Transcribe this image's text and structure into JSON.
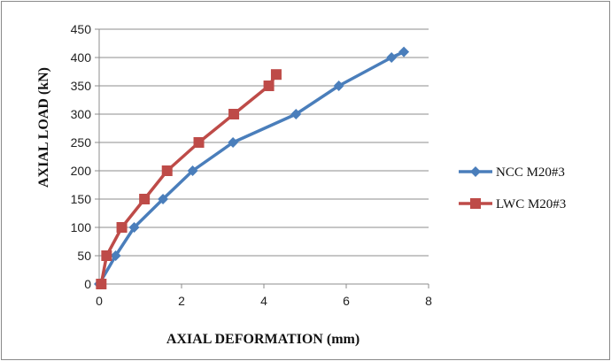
{
  "chart_data": {
    "type": "line",
    "title": "",
    "xlabel": "AXIAL DEFORMATION (mm)",
    "ylabel": "AXIAL LOAD (kN)",
    "xlim": [
      0,
      8
    ],
    "ylim": [
      0,
      450
    ],
    "xticks": [
      0,
      2,
      4,
      6,
      8
    ],
    "yticks": [
      0,
      50,
      100,
      150,
      200,
      250,
      300,
      350,
      400,
      450
    ],
    "grid": "horizontal",
    "legend_position": "right",
    "series": [
      {
        "name": "NCC M20#3",
        "color": "#4a7ebb",
        "marker": "diamond",
        "x": [
          0,
          0.4,
          0.85,
          1.55,
          2.27,
          3.25,
          4.78,
          5.82,
          7.1,
          7.4
        ],
        "y": [
          0,
          50,
          100,
          150,
          200,
          250,
          300,
          350,
          400,
          410
        ]
      },
      {
        "name": "LWC M20#3",
        "color": "#be4b48",
        "marker": "square",
        "x": [
          0.05,
          0.18,
          0.55,
          1.1,
          1.65,
          2.42,
          3.27,
          4.12,
          4.3
        ],
        "y": [
          0,
          50,
          100,
          150,
          200,
          250,
          300,
          350,
          370
        ]
      }
    ]
  }
}
